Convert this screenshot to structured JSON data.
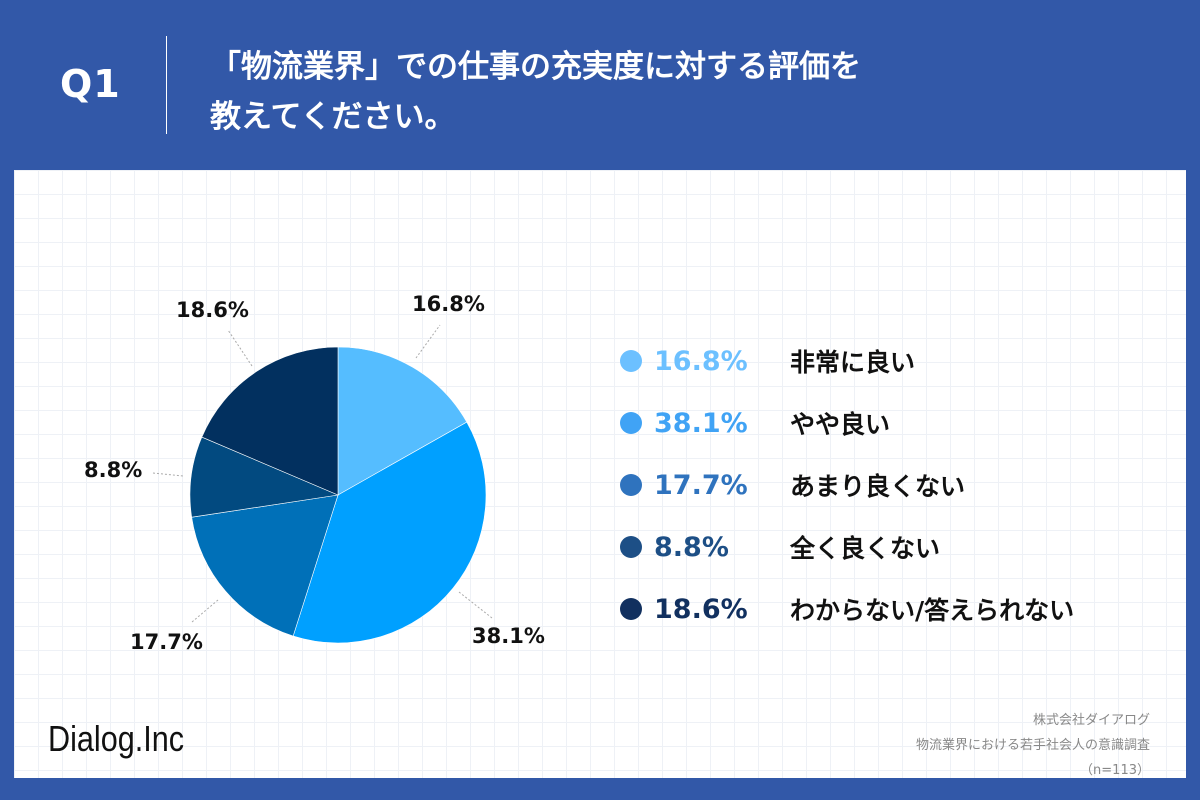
{
  "header": {
    "question_number": "Q1",
    "title_line1": "「物流業界」での仕事の充実度に対する評価を",
    "title_line2": "教えてください。"
  },
  "legend": [
    {
      "pct": "16.8%",
      "label": "非常に良い",
      "color": "#6CC0FF"
    },
    {
      "pct": "38.1%",
      "label": "やや良い",
      "color": "#40A3F5"
    },
    {
      "pct": "17.7%",
      "label": "あまり良くない",
      "color": "#2F73BE"
    },
    {
      "pct": "8.8%",
      "label": "全く良くない",
      "color": "#1D4F86"
    },
    {
      "pct": "18.6%",
      "label": "わからない/答えられない",
      "color": "#11305F"
    }
  ],
  "pie_labels": [
    "16.8%",
    "38.1%",
    "17.7%",
    "8.8%",
    "18.6%"
  ],
  "footer": {
    "logo": "Dialog.Inc",
    "source_line1": "株式会社ダイアログ",
    "source_line2": "物流業界における若手社会人の意識調査",
    "source_line3": "（n=113）"
  },
  "chart_data": {
    "type": "pie",
    "title": "「物流業界」での仕事の充実度に対する評価を教えてください。",
    "categories": [
      "非常に良い",
      "やや良い",
      "あまり良くない",
      "全く良くない",
      "わからない/答えられない"
    ],
    "values": [
      16.8,
      38.1,
      17.7,
      8.8,
      18.6
    ],
    "colors": [
      "#55BDFF",
      "#00A0FF",
      "#0070B8",
      "#024A80",
      "#02305F"
    ],
    "unit": "%",
    "n": 113,
    "legend_position": "right",
    "start_angle": "12 o'clock, clockwise"
  }
}
